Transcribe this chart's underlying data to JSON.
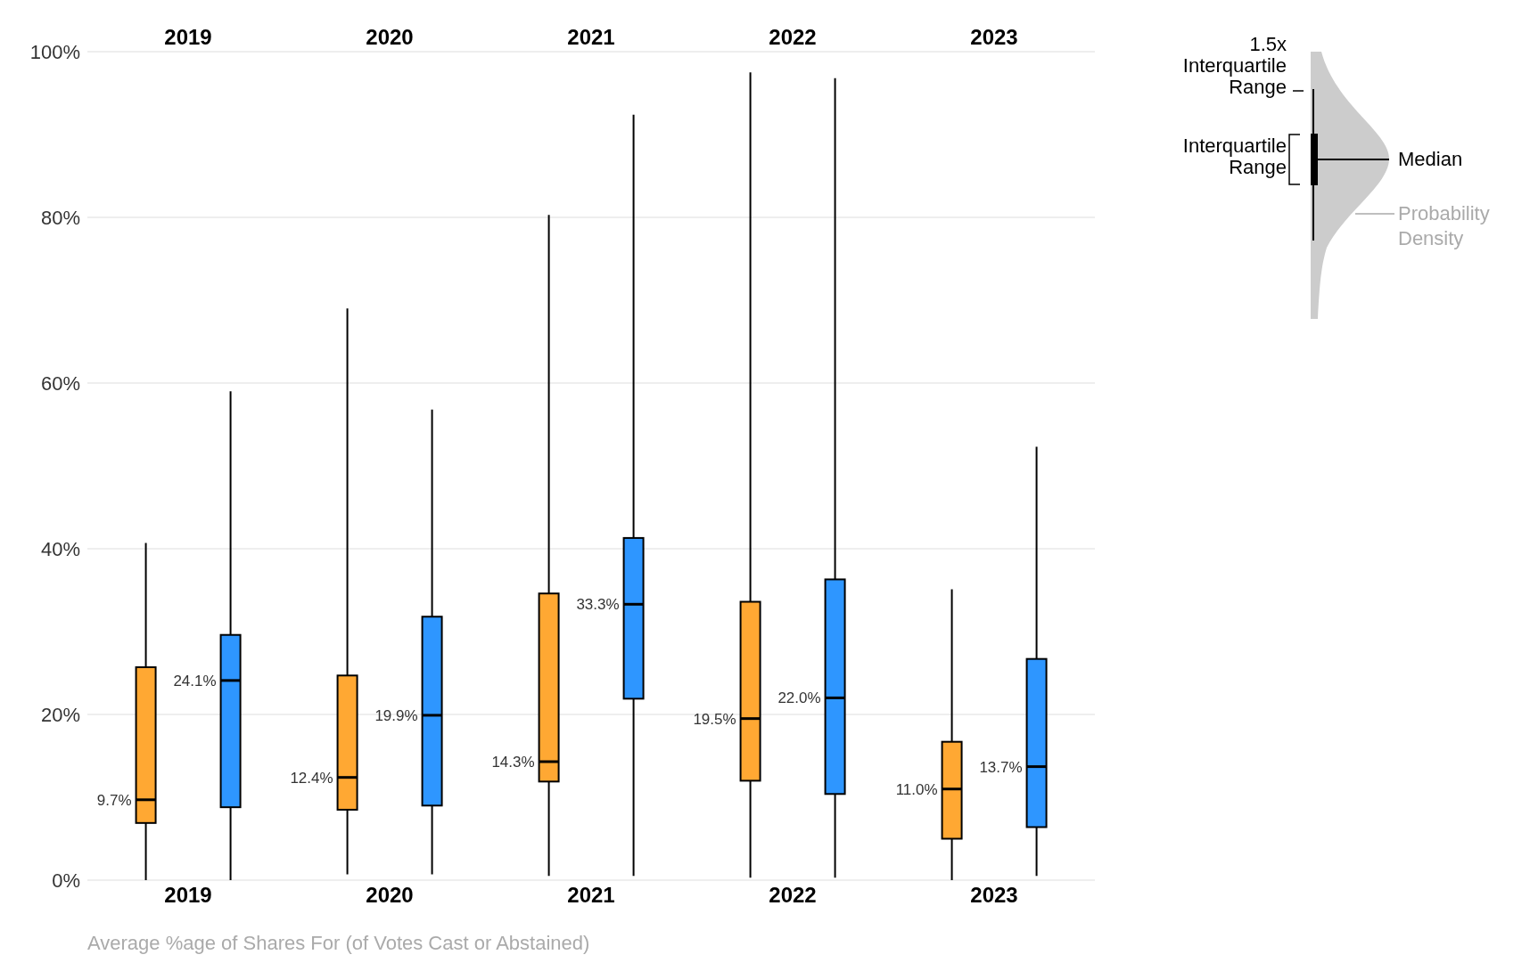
{
  "chart_data": {
    "type": "box",
    "categories": [
      "2019",
      "2020",
      "2021",
      "2022",
      "2023"
    ],
    "ylim": [
      0,
      100
    ],
    "yticks": [
      {
        "value": 0,
        "label": "0%"
      },
      {
        "value": 20,
        "label": "20%"
      },
      {
        "value": 40,
        "label": "40%"
      },
      {
        "value": 60,
        "label": "60%"
      },
      {
        "value": 80,
        "label": "80%"
      },
      {
        "value": 100,
        "label": "100%"
      }
    ],
    "grid": "y",
    "series": [
      {
        "color": "#ffa833",
        "value_labels": [
          "9.7%",
          "12.4%",
          "14.3%",
          "19.5%",
          "11.0%"
        ],
        "boxes": [
          {
            "low": 0,
            "q1": 6.9,
            "median": 9.7,
            "q3": 25.7,
            "high": 40.7
          },
          {
            "low": 0.7,
            "q1": 8.5,
            "median": 12.4,
            "q3": 24.7,
            "high": 69
          },
          {
            "low": 0.5,
            "q1": 11.9,
            "median": 14.3,
            "q3": 34.6,
            "high": 80.3
          },
          {
            "low": 0.3,
            "q1": 12,
            "median": 19.5,
            "q3": 33.6,
            "high": 97.5
          },
          {
            "low": 0,
            "q1": 5,
            "median": 11,
            "q3": 16.7,
            "high": 35.1
          }
        ]
      },
      {
        "color": "#2e96ff",
        "value_labels": [
          "24.1%",
          "19.9%",
          "33.3%",
          "22.0%",
          "13.7%"
        ],
        "boxes": [
          {
            "low": 0,
            "q1": 8.8,
            "median": 24.1,
            "q3": 29.6,
            "high": 59
          },
          {
            "low": 0.7,
            "q1": 9,
            "median": 19.9,
            "q3": 31.8,
            "high": 56.8
          },
          {
            "low": 0.5,
            "q1": 21.9,
            "median": 33.3,
            "q3": 41.3,
            "high": 92.4
          },
          {
            "low": 0.3,
            "q1": 10.4,
            "median": 22,
            "q3": 36.3,
            "high": 96.8
          },
          {
            "low": 0.5,
            "q1": 6.4,
            "median": 13.7,
            "q3": 26.7,
            "high": 52.3
          }
        ]
      }
    ],
    "annotations": [
      "1.5x Interquartile Range",
      "Interquartile Range",
      "Median",
      "Probability Density",
      "Average %age of Shares For (of Votes Cast or Abstained)"
    ]
  }
}
